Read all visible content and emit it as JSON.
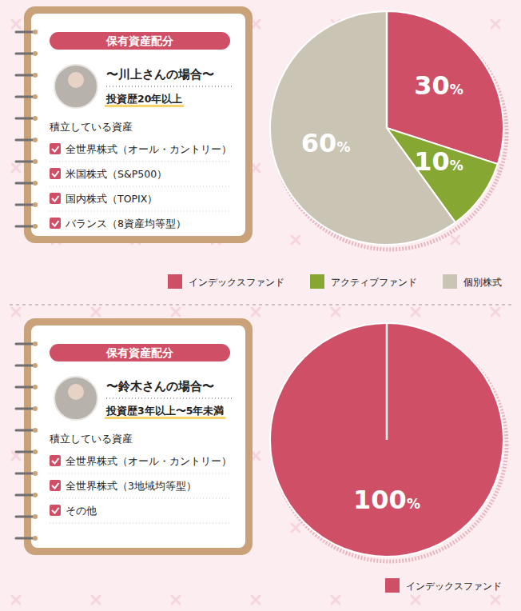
{
  "chart_data": [
    {
      "type": "pie",
      "categories": [
        "インデックスファンド",
        "アクティブファンド",
        "個別株式"
      ],
      "values": [
        30,
        10,
        60
      ],
      "value_labels": [
        "30%",
        "10%",
        "60%"
      ],
      "colors": [
        "#cf4f66",
        "#86a833",
        "#c9c4b4"
      ],
      "data_labels": true,
      "legend": "bottom"
    },
    {
      "type": "pie",
      "categories": [
        "インデックスファンド"
      ],
      "values": [
        100
      ],
      "value_labels": [
        "100%"
      ],
      "colors": [
        "#cf4f66"
      ],
      "data_labels": true,
      "legend": "bottom"
    }
  ],
  "cards": [
    {
      "header": "保有資産配分",
      "name": "〜川上さんの場合〜",
      "experience": "投資歴20年以上",
      "list_title": "積立している資産",
      "items": [
        "全世界株式（オール・カントリー）",
        "米国株式（S&P500）",
        "国内株式（TOPIX）",
        "バランス（8資産均等型）"
      ]
    },
    {
      "header": "保有資産配分",
      "name": "〜鈴木さんの場合〜",
      "experience": "投資歴3年以上〜5年未満",
      "list_title": "積立している資産",
      "items": [
        "全世界株式（オール・カントリー）",
        "全世界株式（3地域均等型）",
        "その他"
      ]
    }
  ]
}
